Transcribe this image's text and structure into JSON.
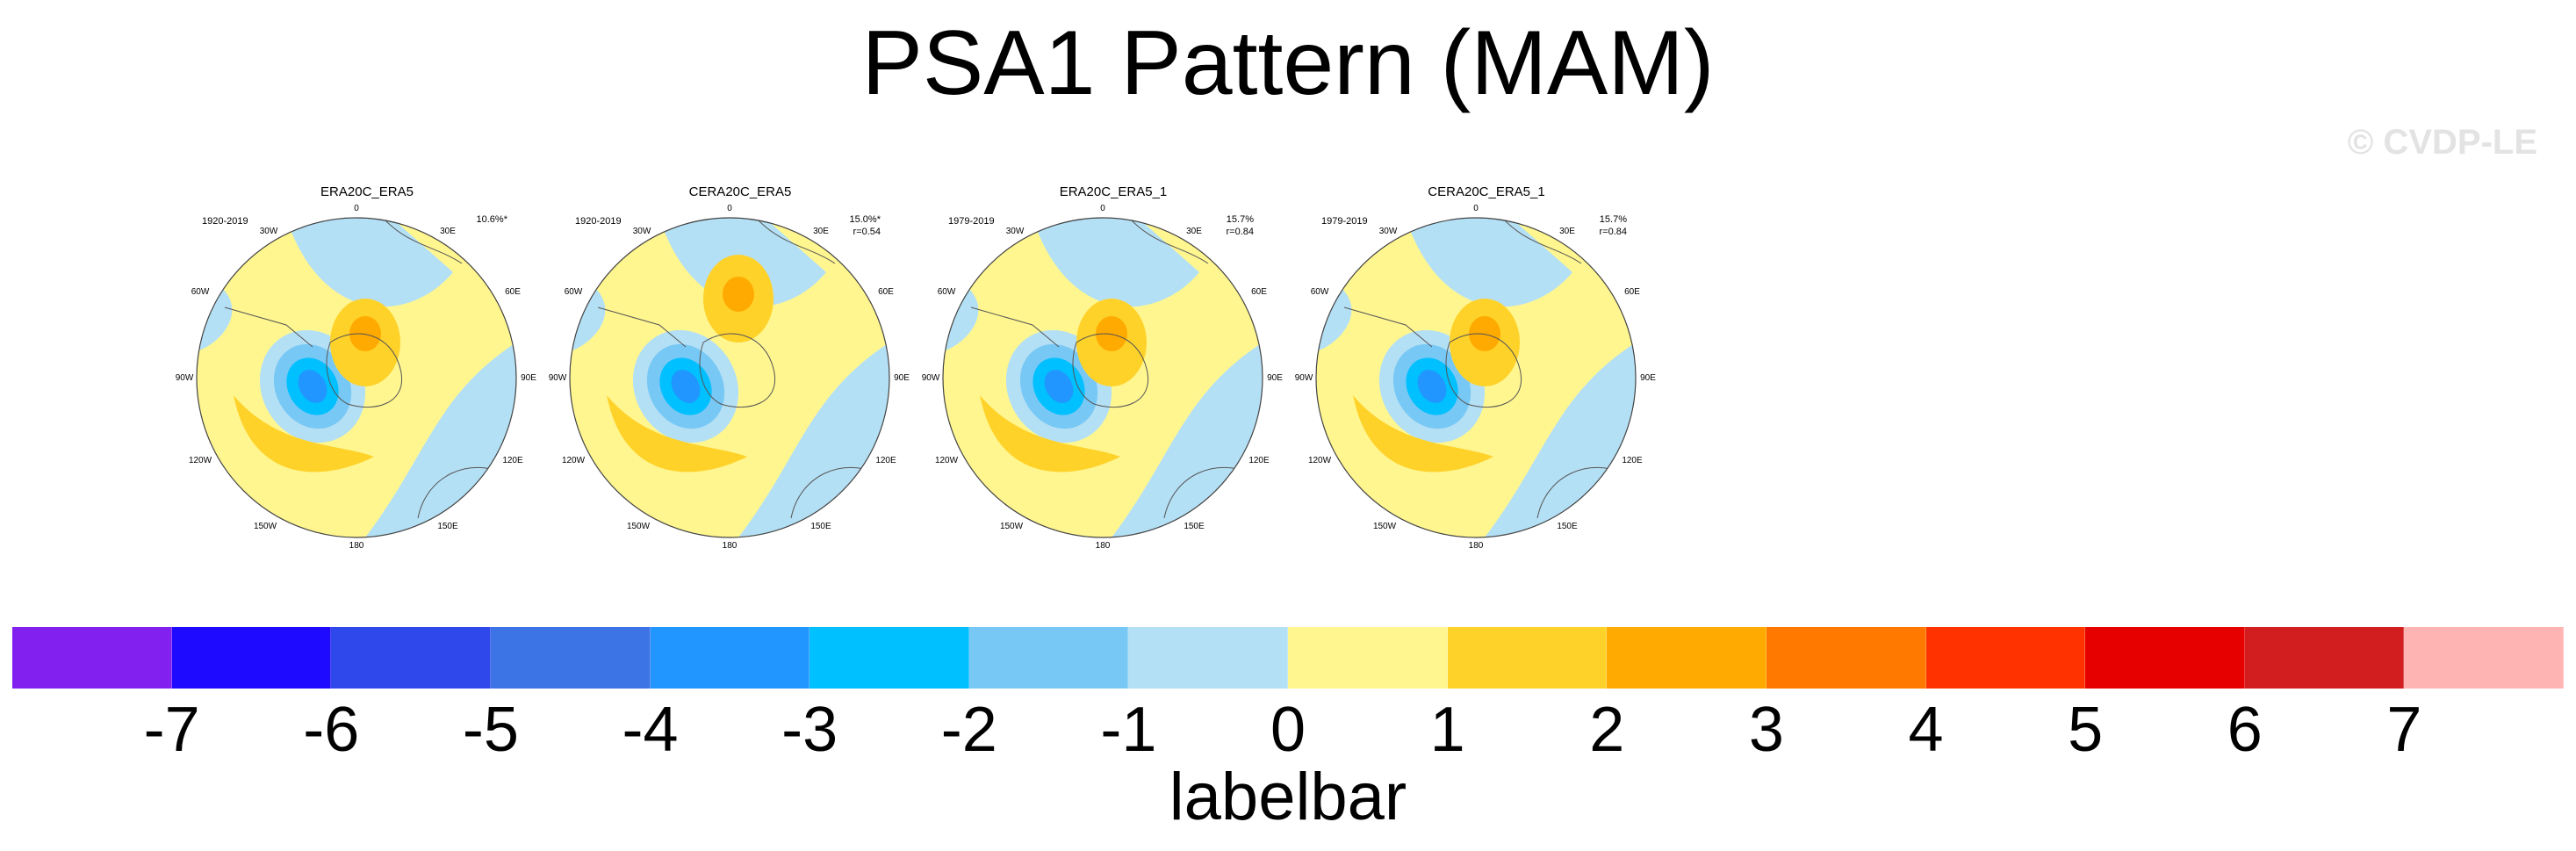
{
  "title": "PSA1 Pattern (MAM)",
  "watermark": "© CVDP-LE",
  "panels": [
    {
      "title": "ERA20C_ERA5",
      "years": "1920-2019",
      "pct": "10.6%*",
      "r": ""
    },
    {
      "title": "CERA20C_ERA5",
      "years": "1920-2019",
      "pct": "15.0%*",
      "r": "r=0.54"
    },
    {
      "title": "ERA20C_ERA5_1",
      "years": "1979-2019",
      "pct": "15.7%",
      "r": "r=0.84"
    },
    {
      "title": "CERA20C_ERA5_1",
      "years": "1979-2019",
      "pct": "15.7%",
      "r": "r=0.84"
    }
  ],
  "longitudes": {
    "top": "0",
    "lon_30w": "30W",
    "lon_30e": "30E",
    "lon_60w": "60W",
    "lon_60e": "60E",
    "lon_90w": "90W",
    "lon_90e": "90E",
    "lon_120w": "120W",
    "lon_120e": "120E",
    "lon_150w": "150W",
    "lon_150e": "150E",
    "bottom": "180"
  },
  "colorbar": {
    "colors": [
      "#8220f0",
      "#1e0aff",
      "#2e48ec",
      "#3c74e6",
      "#2196ff",
      "#00c0ff",
      "#78c8f5",
      "#b4e0f5",
      "#fff690",
      "#ffd22a",
      "#ffaa00",
      "#ff7800",
      "#ff3200",
      "#e60000",
      "#d21e1e",
      "#ffb4b4"
    ],
    "ticks": [
      "-7",
      "-6",
      "-5",
      "-4",
      "-3",
      "-2",
      "-1",
      "0",
      "1",
      "2",
      "3",
      "4",
      "5",
      "6",
      "7"
    ],
    "label": "labelbar"
  }
}
